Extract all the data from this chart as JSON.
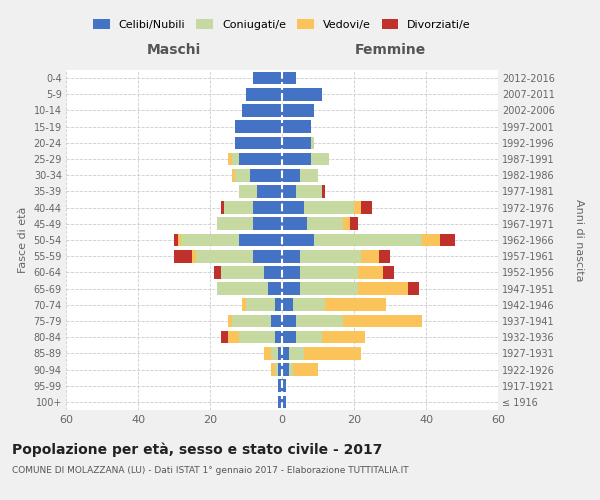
{
  "age_groups": [
    "100+",
    "95-99",
    "90-94",
    "85-89",
    "80-84",
    "75-79",
    "70-74",
    "65-69",
    "60-64",
    "55-59",
    "50-54",
    "45-49",
    "40-44",
    "35-39",
    "30-34",
    "25-29",
    "20-24",
    "15-19",
    "10-14",
    "5-9",
    "0-4"
  ],
  "birth_years": [
    "≤ 1916",
    "1917-1921",
    "1922-1926",
    "1927-1931",
    "1932-1936",
    "1937-1941",
    "1942-1946",
    "1947-1951",
    "1952-1956",
    "1957-1961",
    "1962-1966",
    "1967-1971",
    "1972-1976",
    "1977-1981",
    "1982-1986",
    "1987-1991",
    "1992-1996",
    "1997-2001",
    "2002-2006",
    "2007-2011",
    "2012-2016"
  ],
  "maschi": {
    "celibi": [
      1,
      1,
      1,
      1,
      2,
      3,
      2,
      4,
      5,
      8,
      12,
      8,
      8,
      7,
      9,
      12,
      13,
      13,
      11,
      10,
      8
    ],
    "coniugati": [
      0,
      0,
      1,
      2,
      10,
      11,
      8,
      14,
      12,
      16,
      16,
      10,
      8,
      5,
      4,
      2,
      0,
      0,
      0,
      0,
      0
    ],
    "vedovi": [
      0,
      0,
      1,
      2,
      3,
      1,
      1,
      0,
      0,
      1,
      1,
      0,
      0,
      0,
      1,
      1,
      0,
      0,
      0,
      0,
      0
    ],
    "divorziati": [
      0,
      0,
      0,
      0,
      2,
      0,
      0,
      0,
      2,
      5,
      1,
      0,
      1,
      0,
      0,
      0,
      0,
      0,
      0,
      0,
      0
    ]
  },
  "femmine": {
    "nubili": [
      1,
      1,
      2,
      2,
      4,
      4,
      3,
      5,
      5,
      5,
      9,
      7,
      6,
      4,
      5,
      8,
      8,
      8,
      9,
      11,
      4
    ],
    "coniugate": [
      0,
      0,
      1,
      4,
      7,
      13,
      9,
      16,
      16,
      17,
      30,
      10,
      14,
      7,
      5,
      5,
      1,
      0,
      0,
      0,
      0
    ],
    "vedove": [
      0,
      0,
      7,
      16,
      12,
      22,
      17,
      14,
      7,
      5,
      5,
      2,
      2,
      0,
      0,
      0,
      0,
      0,
      0,
      0,
      0
    ],
    "divorziate": [
      0,
      0,
      0,
      0,
      0,
      0,
      0,
      3,
      3,
      3,
      4,
      2,
      3,
      1,
      0,
      0,
      0,
      0,
      0,
      0,
      0
    ]
  },
  "color_celibi": "#4472c4",
  "color_coniugati": "#c5d9a0",
  "color_vedovi": "#fac45a",
  "color_divorziati": "#c0312b",
  "xlim": 60,
  "title": "Popolazione per età, sesso e stato civile - 2017",
  "subtitle": "COMUNE DI MOLAZZANA (LU) - Dati ISTAT 1° gennaio 2017 - Elaborazione TUTTITALIA.IT",
  "ylabel_left": "Fasce di età",
  "ylabel_right": "Anni di nascita",
  "xlabel_left": "Maschi",
  "xlabel_right": "Femmine",
  "background_color": "#f0f0f0",
  "plot_bg_color": "#ffffff"
}
